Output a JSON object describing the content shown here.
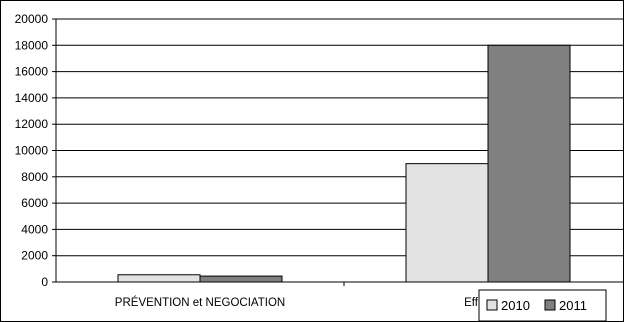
{
  "chart_data": {
    "type": "bar",
    "categories": [
      "PRÉVENTION et NEGOCIATION",
      "Effectif to"
    ],
    "series": [
      {
        "name": "2010",
        "values": [
          550,
          9000
        ],
        "color": "#e3e3e3"
      },
      {
        "name": "2011",
        "values": [
          450,
          18000
        ],
        "color": "#808080"
      }
    ],
    "yticks": [
      "0",
      "2000",
      "4000",
      "6000",
      "8000",
      "10000",
      "12000",
      "14000",
      "16000",
      "18000",
      "20000"
    ],
    "ylim": [
      0,
      20000
    ],
    "grid": true,
    "legend_position": "bottom-right"
  }
}
